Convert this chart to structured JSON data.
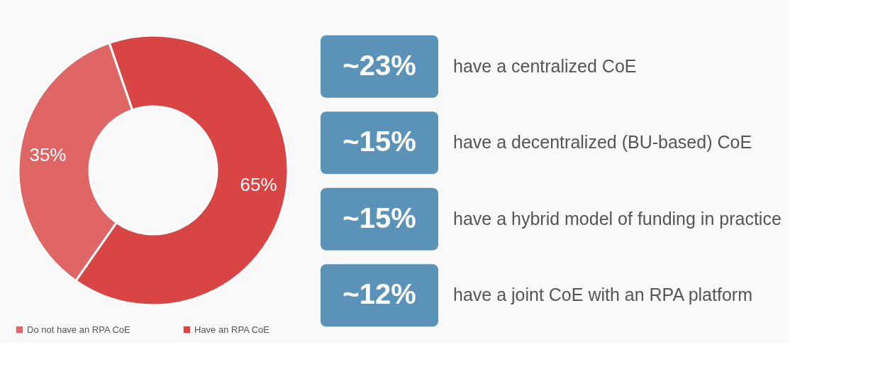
{
  "chart_data": [
    {
      "type": "donut",
      "categories": [
        "Do not have an RPA CoE",
        "Have an RPA CoE"
      ],
      "values": [
        35,
        65
      ],
      "colors": [
        "#e06666",
        "#d94545"
      ],
      "value_labels": [
        "35%",
        "65%"
      ],
      "legend": "bottom"
    },
    {
      "type": "other",
      "categories": [
        "have a centralized CoE",
        "have a decentralized (BU-based) CoE",
        "have a hybrid model of funding in practice",
        "have a joint CoE with an RPA platform"
      ],
      "value_labels": [
        "~23%",
        "~15%",
        "~15%",
        "~12%"
      ],
      "color": "#5b93b8"
    }
  ]
}
